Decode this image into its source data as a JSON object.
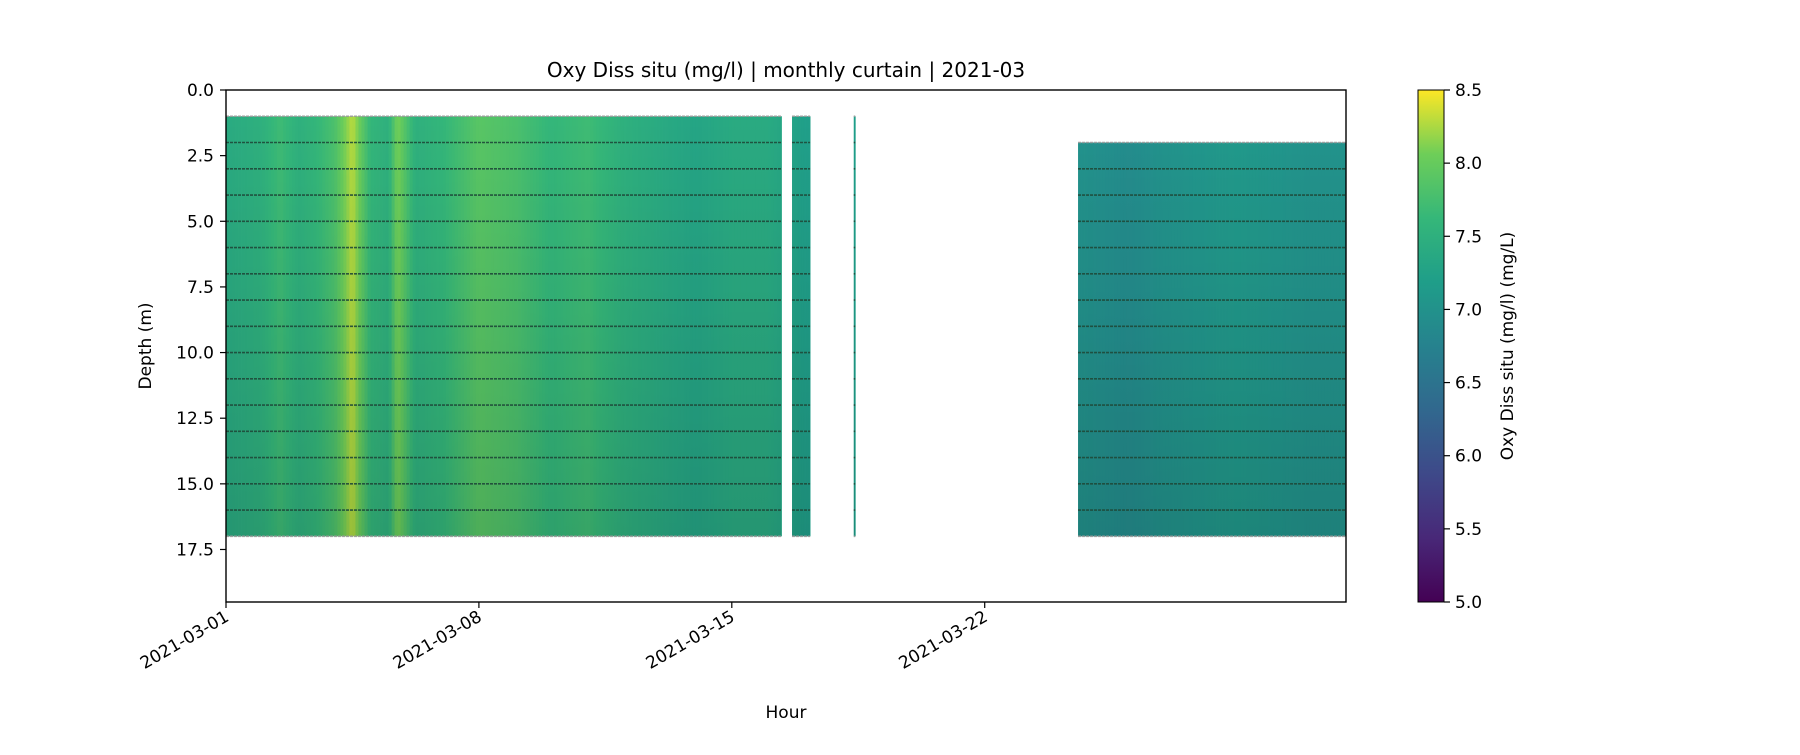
{
  "chart_data": {
    "type": "heatmap",
    "title": "Oxy Diss situ (mg/l) | monthly curtain | 2021-03",
    "xlabel": "Hour",
    "ylabel": "Depth (m)",
    "x_tick_labels": [
      "2021-03-01",
      "2021-03-08",
      "2021-03-15",
      "2021-03-22"
    ],
    "x_ticks": [
      "2021-03-01",
      "2021-03-08",
      "2021-03-15",
      "2021-03-22"
    ],
    "xlim": [
      "2021-03-01",
      "2021-04-01"
    ],
    "y_ticks": [
      0.0,
      2.5,
      5.0,
      7.5,
      10.0,
      12.5,
      15.0,
      17.5
    ],
    "y_tick_labels": [
      "0.0",
      "2.5",
      "5.0",
      "7.5",
      "10.0",
      "12.5",
      "15.0",
      "17.5"
    ],
    "ylim": [
      19.5,
      0.0
    ],
    "y_inverted": true,
    "colorbar": {
      "label": "Oxy Diss situ (mg/l) (mg/L)",
      "colormap": "viridis",
      "range": [
        5.0,
        8.5
      ],
      "ticks": [
        5.0,
        5.5,
        6.0,
        6.5,
        7.0,
        7.5,
        8.0,
        8.5
      ],
      "tick_labels": [
        "5.0",
        "5.5",
        "6.0",
        "6.5",
        "7.0",
        "7.5",
        "8.0",
        "8.5"
      ]
    },
    "sensor_depths_m": [
      1,
      2,
      3,
      4,
      5,
      6,
      7,
      8,
      9,
      10,
      11,
      12,
      13,
      14,
      15,
      16,
      17
    ],
    "segments": [
      {
        "start": "2021-03-01 00:00",
        "end": "2021-03-16 09:00",
        "depth_top": 1.0,
        "depth_bottom": 17.0
      },
      {
        "start": "2021-03-16 16:00",
        "end": "2021-03-17 04:00",
        "depth_top": 1.0,
        "depth_bottom": 17.0
      },
      {
        "start": "2021-03-18 09:00",
        "end": "2021-03-18 10:00",
        "depth_top": 1.0,
        "depth_bottom": 17.0
      },
      {
        "start": "2021-03-24 14:00",
        "end": "2021-04-01 00:00",
        "depth_top": 2.0,
        "depth_bottom": 17.0
      }
    ],
    "time_profile": [
      {
        "time": "2021-03-01 00:00",
        "value": 7.4
      },
      {
        "time": "2021-03-02 00:00",
        "value": 7.5
      },
      {
        "time": "2021-03-02 12:00",
        "value": 7.7
      },
      {
        "time": "2021-03-03 00:00",
        "value": 7.5
      },
      {
        "time": "2021-03-03 12:00",
        "value": 7.6
      },
      {
        "time": "2021-03-04 00:00",
        "value": 7.8
      },
      {
        "time": "2021-03-04 12:00",
        "value": 8.3
      },
      {
        "time": "2021-03-05 00:00",
        "value": 7.6
      },
      {
        "time": "2021-03-05 12:00",
        "value": 7.5
      },
      {
        "time": "2021-03-05 18:00",
        "value": 8.1
      },
      {
        "time": "2021-03-06 06:00",
        "value": 7.5
      },
      {
        "time": "2021-03-07 00:00",
        "value": 7.6
      },
      {
        "time": "2021-03-08 00:00",
        "value": 7.9
      },
      {
        "time": "2021-03-09 00:00",
        "value": 7.8
      },
      {
        "time": "2021-03-10 00:00",
        "value": 7.6
      },
      {
        "time": "2021-03-11 00:00",
        "value": 7.7
      },
      {
        "time": "2021-03-12 00:00",
        "value": 7.5
      },
      {
        "time": "2021-03-13 00:00",
        "value": 7.4
      },
      {
        "time": "2021-03-14 00:00",
        "value": 7.3
      },
      {
        "time": "2021-03-15 00:00",
        "value": 7.4
      },
      {
        "time": "2021-03-16 00:00",
        "value": 7.4
      },
      {
        "time": "2021-03-16 12:00",
        "value": 7.3
      },
      {
        "time": "2021-03-17 00:00",
        "value": 7.2
      },
      {
        "time": "2021-03-18 00:00",
        "value": 7.2
      },
      {
        "time": "2021-03-24 12:00",
        "value": 7.0
      },
      {
        "time": "2021-03-26 00:00",
        "value": 6.9
      },
      {
        "time": "2021-03-27 00:00",
        "value": 7.0
      },
      {
        "time": "2021-03-29 00:00",
        "value": 7.1
      },
      {
        "time": "2021-03-31 00:00",
        "value": 7.0
      },
      {
        "time": "2021-04-01 00:00",
        "value": 7.0
      }
    ],
    "depth_effect": "lower oxygen toward the bottom (about -0.5 mg/L at 17 m relative to the surface)"
  }
}
